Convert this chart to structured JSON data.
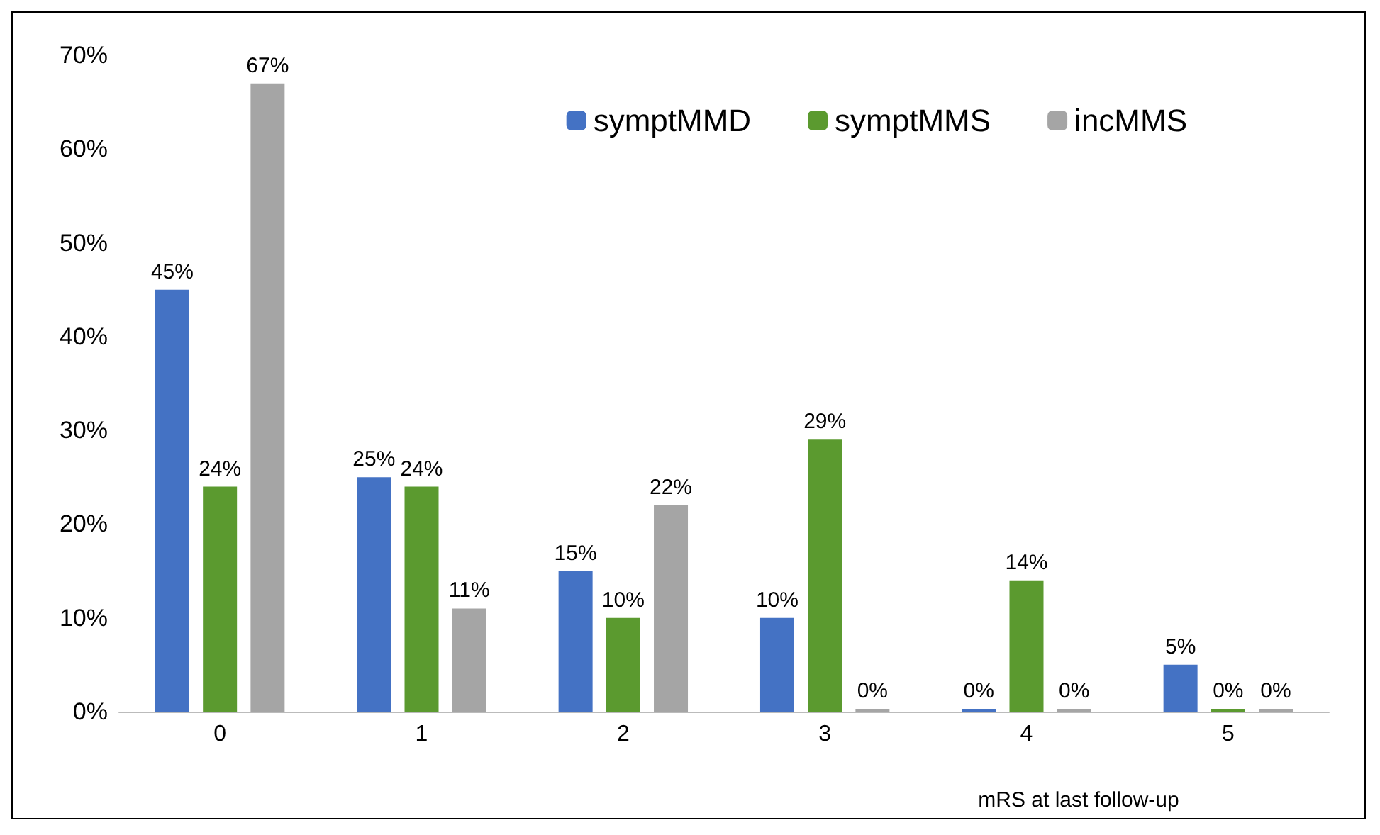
{
  "chart_data": {
    "type": "bar",
    "xlabel": "mRS at last follow-up",
    "categories": [
      "0",
      "1",
      "2",
      "3",
      "4",
      "5"
    ],
    "series": [
      {
        "name": "symptMMD",
        "color": "#4472c4",
        "values": [
          45,
          25,
          15,
          10,
          0,
          5
        ],
        "value_labels": [
          "45%",
          "25%",
          "15%",
          "10%",
          "0%",
          "5%"
        ]
      },
      {
        "name": "symptMMS",
        "color": "#5b9a2f",
        "values": [
          24,
          24,
          10,
          29,
          14,
          0
        ],
        "value_labels": [
          "24%",
          "24%",
          "10%",
          "29%",
          "14%",
          "0%"
        ]
      },
      {
        "name": "incMMS",
        "color": "#a5a5a5",
        "values": [
          67,
          11,
          22,
          0,
          0,
          0
        ],
        "value_labels": [
          "67%",
          "11%",
          "22%",
          "0%",
          "0%",
          "0%"
        ]
      }
    ],
    "ylim": [
      0,
      70
    ],
    "yticks": [
      {
        "value": 0,
        "label": "0%"
      },
      {
        "value": 10,
        "label": "10%"
      },
      {
        "value": 20,
        "label": "20%"
      },
      {
        "value": 30,
        "label": "30%"
      },
      {
        "value": 40,
        "label": "40%"
      },
      {
        "value": 50,
        "label": "50%"
      },
      {
        "value": 60,
        "label": "60%"
      },
      {
        "value": 70,
        "label": "70%"
      }
    ],
    "grid": false,
    "legend": "top right"
  }
}
